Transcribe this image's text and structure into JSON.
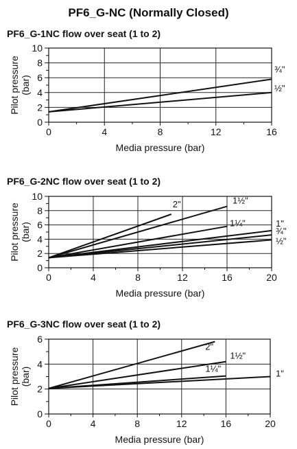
{
  "page": {
    "title": "PF6_G-NC (Normally Closed)"
  },
  "chart_data": [
    {
      "type": "line",
      "title": "PF6_G-1NC flow over seat (1 to 2)",
      "xlabel": "Media pressure (bar)",
      "ylabel": "Pilot pressure (bar)",
      "xlim": [
        0,
        16
      ],
      "ylim": [
        0,
        10
      ],
      "xticks": [
        "0",
        "4",
        "8",
        "12",
        "16"
      ],
      "yticks": [
        "0",
        "2",
        "4",
        "6",
        "8",
        "10"
      ],
      "grid": true,
      "series": [
        {
          "name": "¾\"",
          "x": [
            0,
            16
          ],
          "y": [
            1.4,
            5.8
          ]
        },
        {
          "name": "½\"",
          "x": [
            0,
            16
          ],
          "y": [
            1.4,
            4.0
          ]
        }
      ]
    },
    {
      "type": "line",
      "title": "PF6_G-2NC flow over seat (1 to 2)",
      "xlabel": "Media pressure (bar)",
      "ylabel": "Pilot pressure (bar)",
      "xlim": [
        0,
        20
      ],
      "ylim": [
        0,
        10
      ],
      "xticks": [
        "0",
        "4",
        "8",
        "12",
        "16",
        "20"
      ],
      "yticks": [
        "0",
        "2",
        "4",
        "6",
        "8",
        "10"
      ],
      "grid": true,
      "series": [
        {
          "name": "2\"",
          "x": [
            0,
            11
          ],
          "y": [
            1.4,
            7.5
          ]
        },
        {
          "name": "1½\"",
          "x": [
            0,
            16
          ],
          "y": [
            1.4,
            8.6
          ]
        },
        {
          "name": "1¼\"",
          "x": [
            0,
            16
          ],
          "y": [
            1.4,
            5.8
          ]
        },
        {
          "name": "1\"",
          "x": [
            0,
            20
          ],
          "y": [
            1.4,
            5.2
          ]
        },
        {
          "name": "¾\"",
          "x": [
            0,
            20
          ],
          "y": [
            1.4,
            4.6
          ]
        },
        {
          "name": "½\"",
          "x": [
            0,
            20
          ],
          "y": [
            1.4,
            3.9
          ]
        }
      ]
    },
    {
      "type": "line",
      "title": "PF6_G-3NC flow over seat (1 to 2)",
      "xlabel": "Media pressure (bar)",
      "ylabel": "Pilot pressure (bar)",
      "xlim": [
        0,
        20
      ],
      "ylim": [
        0,
        6
      ],
      "xticks": [
        "0",
        "4",
        "8",
        "12",
        "16",
        "20"
      ],
      "yticks": [
        "0",
        "2",
        "4",
        "6"
      ],
      "grid": true,
      "series": [
        {
          "name": "2\"",
          "x": [
            0,
            15
          ],
          "y": [
            2.05,
            5.8
          ]
        },
        {
          "name": "1½\"",
          "x": [
            0,
            16
          ],
          "y": [
            2.05,
            4.2
          ]
        },
        {
          "name": "1¼\"",
          "x": [
            0,
            16
          ],
          "y": [
            2.05,
            3.05
          ]
        },
        {
          "name": "1\"",
          "x": [
            0,
            20
          ],
          "y": [
            2.05,
            3.0
          ]
        }
      ]
    }
  ]
}
